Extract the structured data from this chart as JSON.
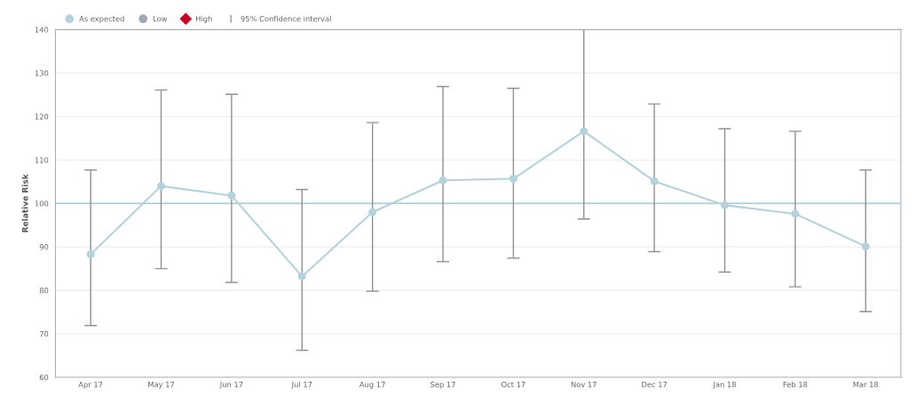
{
  "chart_data": {
    "type": "line",
    "ylabel": "Relative Risk",
    "categories": [
      "Apr 17",
      "May 17",
      "Jun 17",
      "Jul 17",
      "Aug 17",
      "Sep 17",
      "Oct 17",
      "Nov 17",
      "Dec 17",
      "Jan 18",
      "Feb 18",
      "Mar 18"
    ],
    "series": [
      {
        "name": "As expected",
        "color": "#b4d2dc",
        "marker": "circle",
        "values": [
          88.3,
          104.0,
          101.8,
          83.2,
          98.0,
          105.3,
          105.7,
          116.6,
          105.1,
          99.6,
          97.6,
          90.1
        ],
        "errors": [
          [
            71.9,
            107.7
          ],
          [
            85.0,
            126.1
          ],
          [
            81.8,
            125.1
          ],
          [
            66.2,
            103.2
          ],
          [
            79.8,
            118.6
          ],
          [
            86.6,
            126.9
          ],
          [
            87.4,
            126.5
          ],
          [
            96.4,
            140
          ],
          [
            88.9,
            122.9
          ],
          [
            84.2,
            117.2
          ],
          [
            80.8,
            116.6
          ],
          [
            75.1,
            107.7
          ]
        ]
      },
      {
        "name": "Low",
        "color": "#a0a8ac",
        "marker": "circle",
        "values": [
          null,
          null,
          null,
          null,
          null,
          null,
          null,
          null,
          null,
          null,
          null,
          null
        ]
      },
      {
        "name": "High",
        "color": "#cc0022",
        "marker": "diamond",
        "values": [
          null,
          null,
          null,
          null,
          null,
          null,
          null,
          null,
          null,
          null,
          null,
          null
        ]
      }
    ],
    "annotations": [
      "95% Confidence interval"
    ],
    "ref_lines": [
      {
        "axis": "y",
        "value": 100,
        "color": "#8ec8d4"
      }
    ],
    "ylim": [
      60,
      140
    ],
    "yticks": [
      60,
      70,
      80,
      90,
      100,
      110,
      120,
      130,
      140
    ],
    "grid": "y",
    "legend": "top left"
  }
}
